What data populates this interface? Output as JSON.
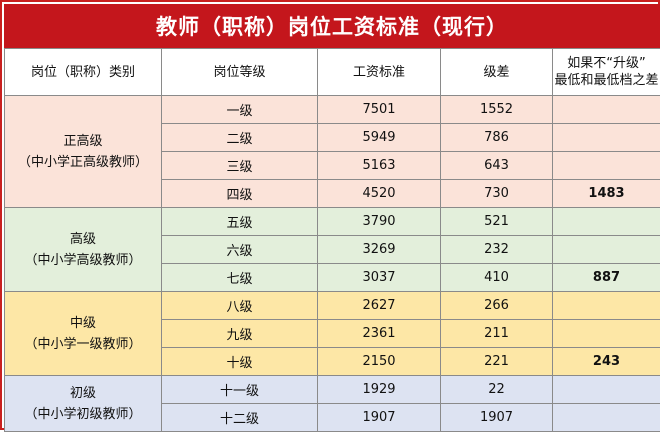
{
  "title": "教师（职称）岗位工资标准（现行）",
  "headers": {
    "category": "岗位（职称）类别",
    "grade": "岗位等级",
    "salary": "工资标准",
    "step": "级差",
    "note_line1": "如果不“升级”",
    "note_line2": "最低和最低档之差"
  },
  "groups": [
    {
      "name": "正高级",
      "subtitle": "（中小学正高级教师）",
      "color": "#fbe3d9",
      "rows": [
        {
          "grade": "一级",
          "salary": "7501",
          "step": "1552",
          "diff": ""
        },
        {
          "grade": "二级",
          "salary": "5949",
          "step": "786",
          "diff": ""
        },
        {
          "grade": "三级",
          "salary": "5163",
          "step": "643",
          "diff": ""
        },
        {
          "grade": "四级",
          "salary": "4520",
          "step": "730",
          "diff": "1483"
        }
      ]
    },
    {
      "name": "高级",
      "subtitle": "（中小学高级教师）",
      "color": "#e3efdb",
      "rows": [
        {
          "grade": "五级",
          "salary": "3790",
          "step": "521",
          "diff": ""
        },
        {
          "grade": "六级",
          "salary": "3269",
          "step": "232",
          "diff": ""
        },
        {
          "grade": "七级",
          "salary": "3037",
          "step": "410",
          "diff": "887"
        }
      ]
    },
    {
      "name": "中级",
      "subtitle": "（中小学一级教师）",
      "color": "#fde7a6",
      "rows": [
        {
          "grade": "八级",
          "salary": "2627",
          "step": "266",
          "diff": ""
        },
        {
          "grade": "九级",
          "salary": "2361",
          "step": "211",
          "diff": ""
        },
        {
          "grade": "十级",
          "salary": "2150",
          "step": "221",
          "diff": "243"
        }
      ]
    },
    {
      "name": "初级",
      "subtitle": "（中小学初级教师）",
      "color": "#dde3f2",
      "rows": [
        {
          "grade": "十一级",
          "salary": "1929",
          "step": "22",
          "diff": ""
        },
        {
          "grade": "十二级",
          "salary": "1907",
          "step": "1907",
          "diff": ""
        }
      ]
    }
  ],
  "colors": {
    "title_bg": "#c4161c",
    "title_text": "#ffffff",
    "border": "#c9201f"
  }
}
